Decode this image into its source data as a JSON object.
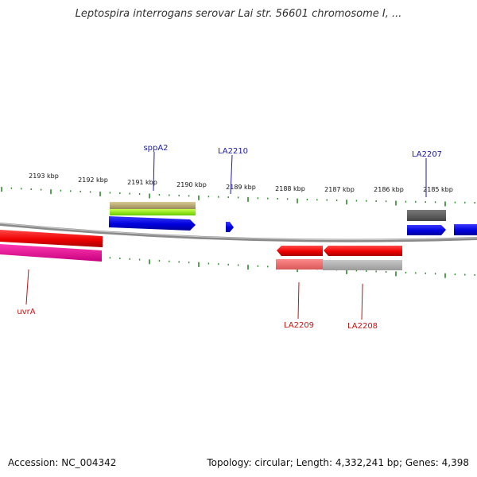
{
  "title": "Leptospira interrogans serovar Lai str. 56601 chromosome I, ...",
  "footer": {
    "accession": "Accession: NC_004342",
    "info": "Topology: circular; Length: 4,332,241 bp; Genes: 4,398"
  },
  "colors": {
    "forward_gene": "#0000ee",
    "reverse_gene": "#ee0000",
    "forward_label": "#1a1aaa",
    "reverse_label": "#cc1111",
    "tick": "#2a8a2a",
    "backbone": "#888888"
  },
  "kbp_labels": [
    "2193 kbp",
    "2192 kbp",
    "2191 kbp",
    "2190 kbp",
    "2189 kbp",
    "2188 kbp",
    "2187 kbp",
    "2186 kbp",
    "2185 kbp"
  ],
  "gene_labels": {
    "sppA2": "sppA2",
    "LA2210": "LA2210",
    "LA2207": "LA2207",
    "uvrA": "uvrA",
    "LA2209": "LA2209",
    "LA2208": "LA2208"
  }
}
